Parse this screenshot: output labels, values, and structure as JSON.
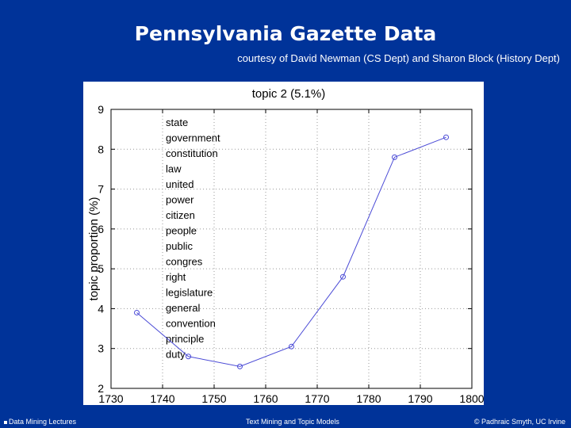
{
  "slide": {
    "title": "Pennsylvania Gazette Data",
    "subtitle": "courtesy of David Newman (CS Dept) and Sharon Block (History Dept)"
  },
  "footer": {
    "left": "Data Mining Lectures",
    "center": "Text Mining and Topic Models",
    "right": "© Padhraic Smyth, UC Irvine"
  },
  "colors": {
    "background": "#003399",
    "series": "#4b4bd6"
  },
  "chart_data": {
    "type": "line",
    "title": "topic 2 (5.1%)",
    "xlabel": "",
    "ylabel": "topic proportion (%)",
    "xlim": [
      1730,
      1800
    ],
    "ylim": [
      2,
      9
    ],
    "xticks": [
      1730,
      1740,
      1750,
      1760,
      1770,
      1780,
      1790,
      1800
    ],
    "yticks": [
      2,
      3,
      4,
      5,
      6,
      7,
      8,
      9
    ],
    "grid": true,
    "x": [
      1735,
      1745,
      1755,
      1765,
      1775,
      1785,
      1795
    ],
    "y": [
      3.9,
      2.8,
      2.55,
      3.05,
      4.8,
      7.8,
      8.3
    ],
    "annotation_words": [
      "state",
      "government",
      "constitution",
      "law",
      "united",
      "power",
      "citizen",
      "people",
      "public",
      "congres",
      "right",
      "legislature",
      "general",
      "convention",
      "principle",
      "duty"
    ]
  }
}
